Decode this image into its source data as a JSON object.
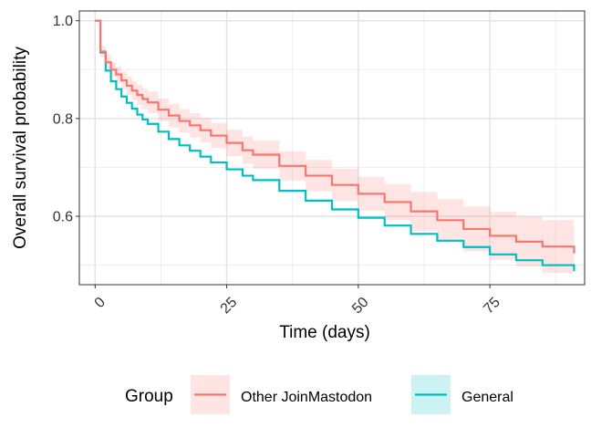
{
  "chart_data": {
    "type": "line",
    "subtype": "kaplan-meier step curves with confidence bands",
    "xlabel": "Time (days)",
    "ylabel": "Overall survival probability",
    "xlim": [
      -3,
      93
    ],
    "ylim": [
      0.46,
      1.02
    ],
    "x_ticks": [
      0,
      25,
      50,
      75
    ],
    "x_tick_labels": [
      "0",
      "25",
      "50",
      "75"
    ],
    "y_ticks": [
      0.6,
      0.8,
      1.0
    ],
    "y_tick_labels": [
      "0.6",
      "0.8",
      "1.0"
    ],
    "x_tick_rotation_deg": -45,
    "grid": true,
    "legend": {
      "title": "Group",
      "position": "bottom",
      "entries": [
        "Other JoinMastodon",
        "General"
      ]
    },
    "series": [
      {
        "name": "Other JoinMastodon",
        "color": "#F8766D",
        "band_color": "#F8766D",
        "points": [
          [
            0,
            1.0
          ],
          [
            1,
            0.937
          ],
          [
            2,
            0.915
          ],
          [
            3,
            0.9
          ],
          [
            4,
            0.89
          ],
          [
            5,
            0.878
          ],
          [
            6,
            0.867
          ],
          [
            7,
            0.857
          ],
          [
            8,
            0.848
          ],
          [
            9,
            0.84
          ],
          [
            10,
            0.833
          ],
          [
            12,
            0.818
          ],
          [
            14,
            0.806
          ],
          [
            16,
            0.795
          ],
          [
            18,
            0.786
          ],
          [
            20,
            0.776
          ],
          [
            22,
            0.765
          ],
          [
            25,
            0.75
          ],
          [
            28,
            0.735
          ],
          [
            30,
            0.726
          ],
          [
            35,
            0.703
          ],
          [
            40,
            0.683
          ],
          [
            45,
            0.664
          ],
          [
            50,
            0.646
          ],
          [
            55,
            0.629
          ],
          [
            60,
            0.61
          ],
          [
            65,
            0.592
          ],
          [
            70,
            0.574
          ],
          [
            75,
            0.56
          ],
          [
            80,
            0.548
          ],
          [
            85,
            0.538
          ],
          [
            91,
            0.524
          ]
        ],
        "ci_lower": [
          [
            0,
            1.0
          ],
          [
            1,
            0.925
          ],
          [
            2,
            0.9
          ],
          [
            3,
            0.885
          ],
          [
            4,
            0.872
          ],
          [
            5,
            0.86
          ],
          [
            6,
            0.848
          ],
          [
            7,
            0.837
          ],
          [
            8,
            0.827
          ],
          [
            9,
            0.819
          ],
          [
            10,
            0.811
          ],
          [
            12,
            0.795
          ],
          [
            14,
            0.782
          ],
          [
            16,
            0.771
          ],
          [
            18,
            0.761
          ],
          [
            20,
            0.751
          ],
          [
            22,
            0.739
          ],
          [
            25,
            0.723
          ],
          [
            28,
            0.707
          ],
          [
            30,
            0.697
          ],
          [
            35,
            0.673
          ],
          [
            40,
            0.651
          ],
          [
            45,
            0.631
          ],
          [
            50,
            0.611
          ],
          [
            55,
            0.592
          ],
          [
            60,
            0.57
          ],
          [
            65,
            0.549
          ],
          [
            70,
            0.528
          ],
          [
            75,
            0.511
          ],
          [
            80,
            0.497
          ],
          [
            85,
            0.484
          ],
          [
            91,
            0.468
          ]
        ],
        "ci_upper": [
          [
            0,
            1.0
          ],
          [
            1,
            0.948
          ],
          [
            2,
            0.93
          ],
          [
            3,
            0.915
          ],
          [
            4,
            0.906
          ],
          [
            5,
            0.896
          ],
          [
            6,
            0.886
          ],
          [
            7,
            0.877
          ],
          [
            8,
            0.869
          ],
          [
            9,
            0.861
          ],
          [
            10,
            0.855
          ],
          [
            12,
            0.841
          ],
          [
            14,
            0.83
          ],
          [
            16,
            0.819
          ],
          [
            18,
            0.811
          ],
          [
            20,
            0.801
          ],
          [
            22,
            0.791
          ],
          [
            25,
            0.777
          ],
          [
            28,
            0.763
          ],
          [
            30,
            0.755
          ],
          [
            35,
            0.733
          ],
          [
            40,
            0.715
          ],
          [
            45,
            0.697
          ],
          [
            50,
            0.681
          ],
          [
            55,
            0.666
          ],
          [
            60,
            0.65
          ],
          [
            65,
            0.635
          ],
          [
            70,
            0.62
          ],
          [
            75,
            0.609
          ],
          [
            80,
            0.599
          ],
          [
            85,
            0.592
          ],
          [
            91,
            0.58
          ]
        ]
      },
      {
        "name": "General",
        "color": "#00BFC4",
        "band_color": "#00BFC4",
        "points": [
          [
            0,
            1.0
          ],
          [
            1,
            0.935
          ],
          [
            2,
            0.898
          ],
          [
            3,
            0.876
          ],
          [
            4,
            0.86
          ],
          [
            5,
            0.845
          ],
          [
            6,
            0.832
          ],
          [
            7,
            0.82
          ],
          [
            8,
            0.808
          ],
          [
            9,
            0.798
          ],
          [
            10,
            0.789
          ],
          [
            12,
            0.773
          ],
          [
            14,
            0.758
          ],
          [
            16,
            0.745
          ],
          [
            18,
            0.734
          ],
          [
            20,
            0.722
          ],
          [
            22,
            0.71
          ],
          [
            25,
            0.696
          ],
          [
            28,
            0.683
          ],
          [
            30,
            0.674
          ],
          [
            35,
            0.652
          ],
          [
            40,
            0.632
          ],
          [
            45,
            0.614
          ],
          [
            50,
            0.597
          ],
          [
            55,
            0.581
          ],
          [
            60,
            0.564
          ],
          [
            65,
            0.55
          ],
          [
            70,
            0.537
          ],
          [
            75,
            0.522
          ],
          [
            80,
            0.51
          ],
          [
            85,
            0.5
          ],
          [
            91,
            0.488
          ]
        ],
        "ci_lower": [
          [
            0,
            1.0
          ],
          [
            1,
            0.933
          ],
          [
            2,
            0.896
          ],
          [
            3,
            0.874
          ],
          [
            4,
            0.858
          ],
          [
            5,
            0.843
          ],
          [
            6,
            0.83
          ],
          [
            7,
            0.818
          ],
          [
            8,
            0.806
          ],
          [
            9,
            0.796
          ],
          [
            10,
            0.787
          ],
          [
            12,
            0.771
          ],
          [
            14,
            0.756
          ],
          [
            16,
            0.743
          ],
          [
            18,
            0.732
          ],
          [
            20,
            0.72
          ],
          [
            22,
            0.708
          ],
          [
            25,
            0.694
          ],
          [
            28,
            0.681
          ],
          [
            30,
            0.672
          ],
          [
            35,
            0.65
          ],
          [
            40,
            0.63
          ],
          [
            45,
            0.612
          ],
          [
            50,
            0.595
          ],
          [
            55,
            0.579
          ],
          [
            60,
            0.562
          ],
          [
            65,
            0.548
          ],
          [
            70,
            0.535
          ],
          [
            75,
            0.52
          ],
          [
            80,
            0.508
          ],
          [
            85,
            0.498
          ],
          [
            91,
            0.486
          ]
        ],
        "ci_upper": [
          [
            0,
            1.0
          ],
          [
            1,
            0.937
          ],
          [
            2,
            0.9
          ],
          [
            3,
            0.878
          ],
          [
            4,
            0.862
          ],
          [
            5,
            0.847
          ],
          [
            6,
            0.834
          ],
          [
            7,
            0.822
          ],
          [
            8,
            0.81
          ],
          [
            9,
            0.8
          ],
          [
            10,
            0.791
          ],
          [
            12,
            0.775
          ],
          [
            14,
            0.76
          ],
          [
            16,
            0.747
          ],
          [
            18,
            0.736
          ],
          [
            20,
            0.724
          ],
          [
            22,
            0.712
          ],
          [
            25,
            0.698
          ],
          [
            28,
            0.685
          ],
          [
            30,
            0.676
          ],
          [
            35,
            0.654
          ],
          [
            40,
            0.634
          ],
          [
            45,
            0.616
          ],
          [
            50,
            0.599
          ],
          [
            55,
            0.583
          ],
          [
            60,
            0.566
          ],
          [
            65,
            0.552
          ],
          [
            70,
            0.539
          ],
          [
            75,
            0.524
          ],
          [
            80,
            0.512
          ],
          [
            85,
            0.502
          ],
          [
            91,
            0.49
          ]
        ]
      }
    ]
  }
}
